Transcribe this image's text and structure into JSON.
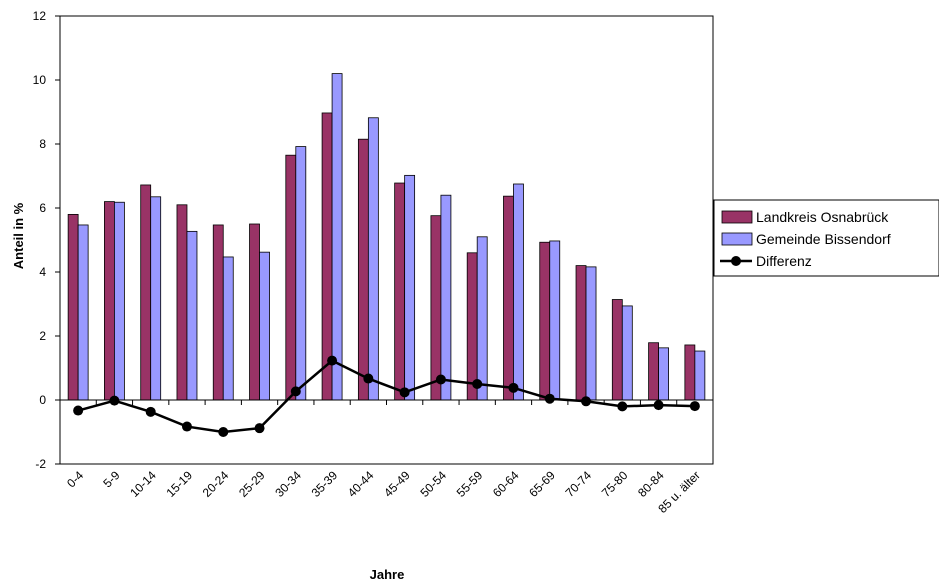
{
  "chart_data": {
    "type": "bar",
    "categories": [
      "0-4",
      "5-9",
      "10-14",
      "15-19",
      "20-24",
      "25-29",
      "30-34",
      "35-39",
      "40-44",
      "45-49",
      "50-54",
      "55-59",
      "60-64",
      "65-69",
      "70-74",
      "75-80",
      "80-84",
      "85 u. älter"
    ],
    "series": [
      {
        "name": "Landkreis Osnabrück",
        "type": "bar",
        "color": "#993366",
        "values": [
          5.8,
          6.2,
          6.72,
          6.1,
          5.47,
          5.5,
          7.65,
          8.97,
          8.15,
          6.78,
          5.76,
          4.6,
          6.37,
          4.93,
          4.2,
          3.14,
          1.79,
          1.72
        ]
      },
      {
        "name": "Gemeinde Bissendorf",
        "type": "bar",
        "color": "#9999FF",
        "values": [
          5.47,
          6.18,
          6.35,
          5.27,
          4.47,
          4.62,
          7.92,
          10.2,
          8.82,
          7.02,
          6.4,
          5.1,
          6.75,
          4.97,
          4.16,
          2.94,
          1.63,
          1.53
        ]
      },
      {
        "name": "Differenz",
        "type": "line",
        "color": "#000000",
        "values": [
          -0.33,
          -0.02,
          -0.37,
          -0.83,
          -1.0,
          -0.88,
          0.27,
          1.23,
          0.67,
          0.24,
          0.64,
          0.5,
          0.38,
          0.04,
          -0.04,
          -0.2,
          -0.16,
          -0.19
        ]
      }
    ],
    "xlabel": "Jahre",
    "ylabel": "Anteil in %",
    "ylim": [
      -2,
      12
    ],
    "yticks": [
      -2,
      0,
      2,
      4,
      6,
      8,
      10,
      12
    ],
    "grid": false,
    "legend_position": "right"
  }
}
